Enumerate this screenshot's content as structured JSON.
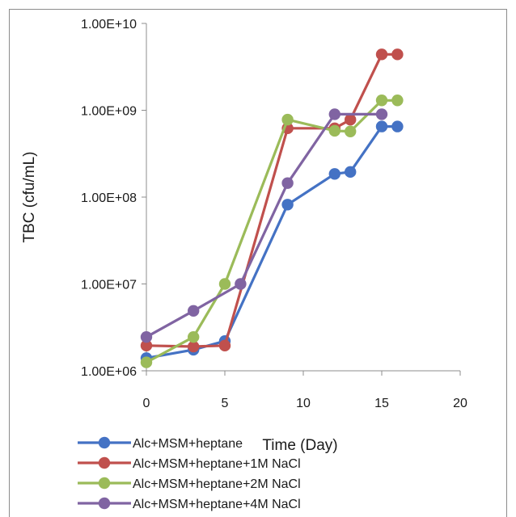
{
  "chart_data": {
    "type": "line",
    "xlabel": "Time (Day)",
    "ylabel": "TBC (cfu/mL)",
    "xlim": [
      0,
      20
    ],
    "xticks": [
      "0",
      "5",
      "10",
      "15",
      "20"
    ],
    "ylim": [
      1000000,
      10000000000
    ],
    "yscale": "log",
    "yticks": [
      "1.00E+06",
      "1.00E+07",
      "1.00E+08",
      "1.00E+09",
      "1.00E+10"
    ],
    "grid": false,
    "legend_position": "bottom",
    "series": [
      {
        "name": "Alc+MSM+heptane",
        "color": "#4472c4",
        "x": [
          0,
          3,
          5,
          9,
          12,
          13,
          15,
          16
        ],
        "y": [
          1400000,
          1750000,
          2200000,
          82000000,
          185000000,
          195000000,
          650000000,
          650000000
        ]
      },
      {
        "name": "Alc+MSM+heptane+1M NaCl",
        "color": "#c0504d",
        "x": [
          0,
          3,
          5,
          9,
          12,
          13,
          15,
          16
        ],
        "y": [
          1950000,
          1900000,
          1950000,
          620000000,
          620000000,
          780000000,
          4400000000,
          4400000000
        ]
      },
      {
        "name": "Alc+MSM+heptane+2M NaCl",
        "color": "#9bbb59",
        "x": [
          0,
          3,
          5,
          9,
          12,
          13,
          15,
          16
        ],
        "y": [
          1250000,
          2450000,
          10000000,
          780000000,
          580000000,
          570000000,
          1300000000,
          1300000000
        ]
      },
      {
        "name": "Alc+MSM+heptane+4M NaCl",
        "color": "#8064a2",
        "x": [
          0,
          3,
          6,
          9,
          12,
          15
        ],
        "y": [
          2450000,
          4900000,
          10000000,
          145000000,
          900000000,
          900000000
        ]
      }
    ]
  }
}
